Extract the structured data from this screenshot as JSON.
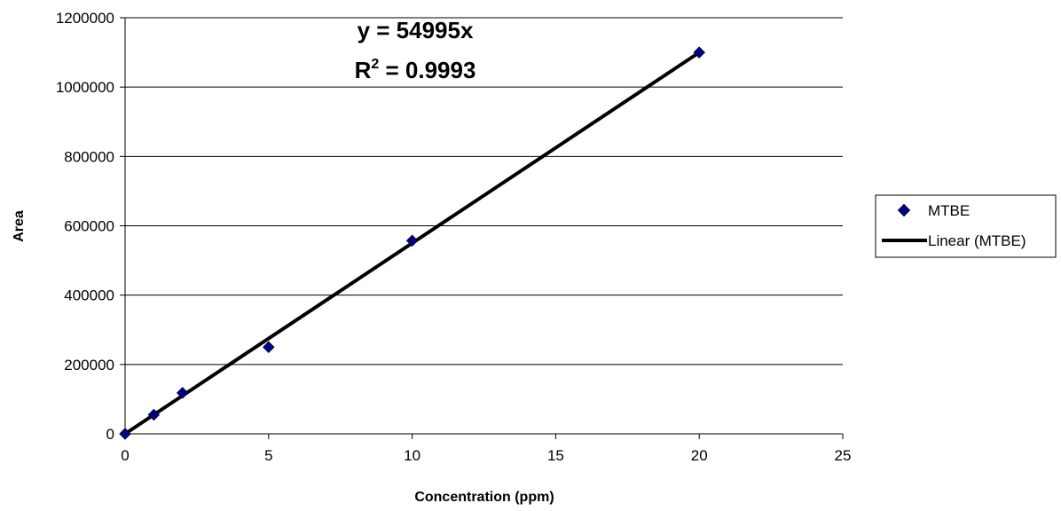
{
  "chart_data": {
    "type": "scatter",
    "xlabel": "Concentration (ppm)",
    "ylabel": "Area",
    "xlim": [
      0,
      25
    ],
    "ylim": [
      0,
      1200000
    ],
    "x_ticks": [
      0,
      5,
      10,
      15,
      20,
      25
    ],
    "y_ticks": [
      0,
      200000,
      400000,
      600000,
      800000,
      1000000,
      1200000
    ],
    "grid": "horizontal",
    "legend_position": "right",
    "series": [
      {
        "name": "MTBE",
        "kind": "scatter",
        "marker": "diamond",
        "color": "#000080",
        "x": [
          0,
          1,
          2,
          5,
          10,
          20
        ],
        "y": [
          0,
          55000,
          118000,
          250000,
          557000,
          1100000
        ]
      }
    ],
    "trendline": {
      "name": "Linear (MTBE)",
      "kind": "line",
      "color": "#000000",
      "slope": 54995,
      "x_range": [
        0,
        20
      ]
    },
    "annotations": {
      "equation_prefix": "y = 54995x",
      "r2_base": "R",
      "r2_exp": "2",
      "r2_value": " = 0.9993"
    }
  }
}
